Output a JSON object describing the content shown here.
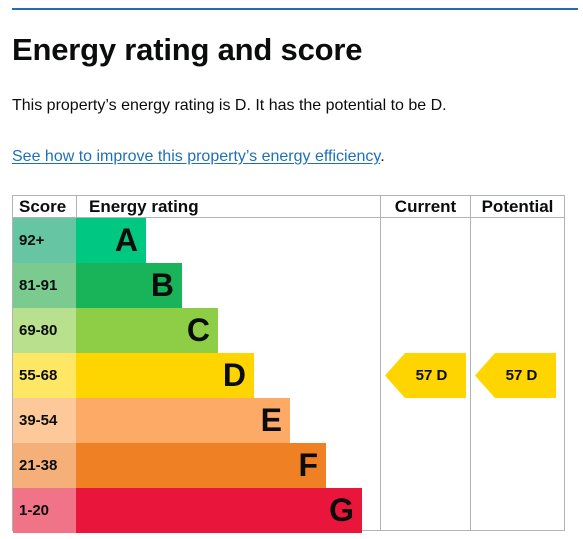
{
  "page": {
    "title": "Energy rating and score",
    "summary": "This property’s energy rating is D. It has the potential to be D.",
    "link_text": "See how to improve this property’s energy efficiency",
    "link_suffix": "."
  },
  "table": {
    "headers": {
      "score": "Score",
      "rating": "Energy rating",
      "current": "Current",
      "potential": "Potential"
    },
    "bands": [
      {
        "score": "92+",
        "letter": "A",
        "bar_color": "#00c781",
        "score_color": "#66c6a3"
      },
      {
        "score": "81-91",
        "letter": "B",
        "bar_color": "#19b459",
        "score_color": "#7bcb91"
      },
      {
        "score": "69-80",
        "letter": "C",
        "bar_color": "#8dce46",
        "score_color": "#b8e08d"
      },
      {
        "score": "55-68",
        "letter": "D",
        "bar_color": "#ffd500",
        "score_color": "#ffe766"
      },
      {
        "score": "39-54",
        "letter": "E",
        "bar_color": "#fcaa65",
        "score_color": "#fdc99b"
      },
      {
        "score": "21-38",
        "letter": "F",
        "bar_color": "#ef8023",
        "score_color": "#f5b07a"
      },
      {
        "score": "1-20",
        "letter": "G",
        "bar_color": "#e9153b",
        "score_color": "#f07388"
      }
    ],
    "current": {
      "label": "57 D",
      "band": "D",
      "color": "#ffd500"
    },
    "potential": {
      "label": "57 D",
      "band": "D",
      "color": "#ffd500"
    }
  }
}
